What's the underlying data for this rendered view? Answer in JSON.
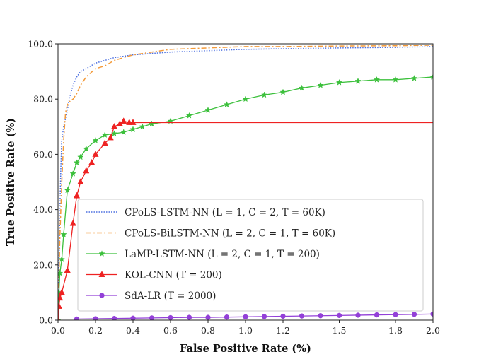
{
  "chart_data": {
    "type": "line",
    "title": "",
    "xlabel": "False Positive Rate (%)",
    "ylabel": "True Positive Rate (%)",
    "xlim": [
      0,
      2.0
    ],
    "ylim": [
      0,
      100
    ],
    "xticks": [
      0.0,
      0.2,
      0.4,
      0.6,
      0.8,
      1.0,
      1.2,
      1.5,
      1.8,
      2.0
    ],
    "xtick_labels": [
      "0.0",
      "0.2",
      "0.4",
      "0.6",
      "0.8",
      "1.0",
      "1.2",
      "1.5",
      "1.8",
      "2.0"
    ],
    "yticks": [
      0,
      20,
      40,
      60,
      80,
      100
    ],
    "ytick_labels": [
      "0.0",
      "20.0",
      "40.0",
      "60.0",
      "80.0",
      "100.0"
    ],
    "grid": false,
    "legend_position": "lower-right",
    "series": [
      {
        "name": "CPoLS-LSTM-NN (L = 1, C = 2, T = 60K)",
        "color": "#4b6fe0",
        "linestyle": "dotted",
        "marker": "none",
        "x": [
          0,
          0.005,
          0.01,
          0.015,
          0.02,
          0.03,
          0.04,
          0.05,
          0.06,
          0.08,
          0.1,
          0.12,
          0.15,
          0.2,
          0.25,
          0.3,
          0.4,
          0.6,
          0.8,
          1.0,
          1.2,
          1.5,
          1.8,
          2.0
        ],
        "values": [
          0,
          20,
          40,
          55,
          65,
          70,
          73,
          76,
          80,
          85,
          88,
          90,
          91,
          93,
          94,
          95,
          96,
          97,
          97.5,
          98,
          98.2,
          98.5,
          98.7,
          99
        ]
      },
      {
        "name": "CPoLS-BiLSTM-NN (L = 2, C = 1, T = 60K)",
        "color": "#f39a3a",
        "linestyle": "dashdot",
        "marker": "none",
        "x": [
          0,
          0.005,
          0.01,
          0.02,
          0.03,
          0.04,
          0.05,
          0.06,
          0.08,
          0.1,
          0.12,
          0.15,
          0.2,
          0.25,
          0.3,
          0.35,
          0.4,
          0.5,
          0.6,
          0.8,
          1.0,
          1.2,
          1.5,
          1.8,
          2.0
        ],
        "values": [
          0,
          15,
          30,
          50,
          65,
          75,
          78,
          79,
          80,
          82,
          85,
          88,
          91,
          92,
          94,
          95,
          96,
          97,
          98,
          98.5,
          99,
          99,
          99.2,
          99.3,
          99.5
        ]
      },
      {
        "name": "LaMP-LSTM-NN (L = 2, C = 1, T = 200)",
        "color": "#3cc03c",
        "linestyle": "solid",
        "marker": "star",
        "x": [
          0,
          0.005,
          0.01,
          0.02,
          0.03,
          0.05,
          0.08,
          0.1,
          0.12,
          0.15,
          0.2,
          0.25,
          0.3,
          0.35,
          0.4,
          0.45,
          0.5,
          0.6,
          0.7,
          0.8,
          0.9,
          1.0,
          1.1,
          1.2,
          1.3,
          1.4,
          1.5,
          1.6,
          1.7,
          1.8,
          1.9,
          2.0
        ],
        "values": [
          0,
          10,
          17,
          22,
          31,
          47,
          53,
          57,
          59,
          62,
          65,
          67,
          67.5,
          68,
          69,
          70,
          71,
          72,
          74,
          76,
          78,
          80,
          81.5,
          82.5,
          84,
          85,
          86,
          86.5,
          87,
          87,
          87.5,
          88
        ]
      },
      {
        "name": "KOL-CNN (T = 200)",
        "color": "#ee2222",
        "linestyle": "solid",
        "marker": "triangle",
        "x": [
          0,
          0.005,
          0.01,
          0.02,
          0.05,
          0.08,
          0.1,
          0.12,
          0.15,
          0.18,
          0.2,
          0.25,
          0.28,
          0.3,
          0.33,
          0.35,
          0.38,
          0.4,
          0.5,
          0.6,
          0.8,
          1.0,
          1.2,
          1.5,
          1.8,
          2.0
        ],
        "values": [
          0,
          5,
          8,
          10,
          18,
          35,
          45,
          50,
          54,
          57,
          60,
          64,
          66,
          70,
          71,
          72,
          71.5,
          71.5,
          71.5,
          71.5,
          71.5,
          71.5,
          71.5,
          71.5,
          71.5,
          71.5
        ]
      },
      {
        "name": "SdA-LR (T = 2000)",
        "color": "#9340d8",
        "linestyle": "solid",
        "marker": "circle",
        "x": [
          0.1,
          0.2,
          0.3,
          0.4,
          0.5,
          0.6,
          0.7,
          0.8,
          0.9,
          1.0,
          1.1,
          1.2,
          1.3,
          1.4,
          1.5,
          1.6,
          1.7,
          1.8,
          1.9,
          2.0
        ],
        "values": [
          0.4,
          0.5,
          0.6,
          0.7,
          0.8,
          0.9,
          1.0,
          1.0,
          1.1,
          1.2,
          1.3,
          1.4,
          1.5,
          1.6,
          1.7,
          1.8,
          1.9,
          2.0,
          2.1,
          2.2
        ]
      }
    ]
  }
}
